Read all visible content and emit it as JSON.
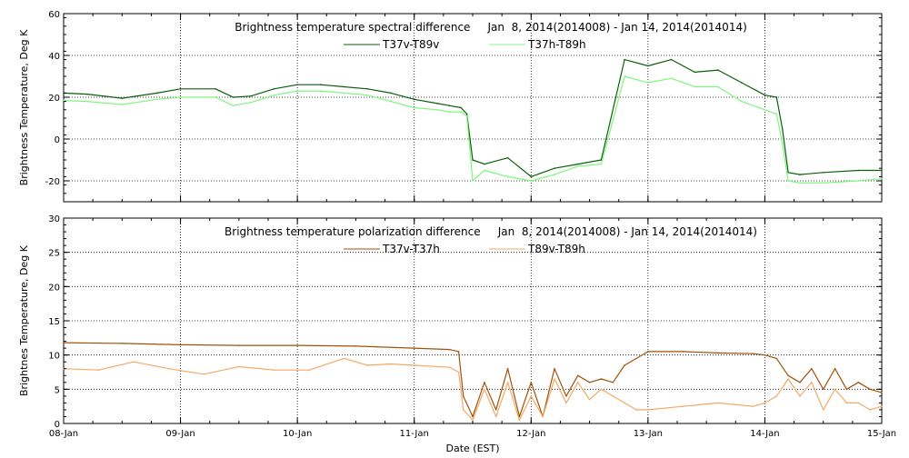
{
  "xlabel": "Date (EST)",
  "x_tick_labels": [
    "08-Jan",
    "09-Jan",
    "10-Jan",
    "11-Jan",
    "12-Jan",
    "13-Jan",
    "14-Jan",
    "15-Jan"
  ],
  "panels": [
    {
      "title": "Brightness temperature spectral difference     Jan  8, 2014(2014008) - Jan 14, 2014(2014014)",
      "ylabel": "Brightness Temperature, Deg K",
      "legend": [
        {
          "label": "T37v-T89v",
          "color": "#0b5f0b"
        },
        {
          "label": "T37h-T89h",
          "color": "#7ff57f"
        }
      ]
    },
    {
      "title": "Brightness temperature polarization difference     Jan  8, 2014(2014008) - Jan 14, 2014(2014014)",
      "ylabel": "Brightnes Temperature, Deg K",
      "legend": [
        {
          "label": "T37v-T37h",
          "color": "#a0520a"
        },
        {
          "label": "T89v-T89h",
          "color": "#f3a968"
        }
      ]
    }
  ],
  "chart_data": [
    {
      "type": "line",
      "title": "Brightness temperature spectral difference     Jan  8, 2014(2014008) - Jan 14, 2014(2014014)",
      "xlabel": "Date (EST)",
      "ylabel": "Brightness Temperature, Deg K",
      "x_unit": "days since 08-Jan 2014",
      "xlim": [
        0,
        7
      ],
      "ylim": [
        -30,
        60
      ],
      "yticks": [
        -20,
        0,
        20,
        40,
        60
      ],
      "grid": true,
      "legend_position": "top-center",
      "series": [
        {
          "name": "T37v-T89v",
          "color": "#0b5f0b",
          "x": [
            0,
            0.2,
            0.5,
            0.8,
            1.0,
            1.3,
            1.45,
            1.6,
            1.8,
            2.0,
            2.2,
            2.4,
            2.6,
            2.8,
            3.0,
            3.2,
            3.3,
            3.4,
            3.45,
            3.5,
            3.6,
            3.8,
            4.0,
            4.2,
            4.4,
            4.6,
            4.8,
            5.0,
            5.2,
            5.4,
            5.6,
            5.8,
            6.0,
            6.1,
            6.15,
            6.2,
            6.3,
            6.5,
            6.8,
            7.0
          ],
          "values": [
            22,
            21.5,
            19.5,
            22,
            24,
            24,
            20,
            20.5,
            24,
            26,
            26,
            25,
            24,
            22,
            19,
            17,
            16,
            15,
            12,
            -10,
            -12,
            -9,
            -18,
            -14,
            -12,
            -10,
            38,
            35,
            38,
            32,
            33,
            27,
            21,
            20,
            5,
            -16,
            -17,
            -16,
            -15,
            -15
          ]
        },
        {
          "name": "T37h-T89h",
          "color": "#7ff57f",
          "x": [
            0,
            0.2,
            0.5,
            0.8,
            1.0,
            1.3,
            1.45,
            1.6,
            1.8,
            2.0,
            2.2,
            2.4,
            2.6,
            2.8,
            3.0,
            3.2,
            3.3,
            3.4,
            3.45,
            3.5,
            3.6,
            3.8,
            4.0,
            4.2,
            4.4,
            4.6,
            4.8,
            5.0,
            5.2,
            5.4,
            5.6,
            5.8,
            6.0,
            6.1,
            6.15,
            6.2,
            6.3,
            6.5,
            6.8,
            7.0
          ],
          "values": [
            18.5,
            18,
            16.5,
            19,
            20,
            20,
            16,
            17.5,
            21,
            23,
            23,
            22,
            21,
            18,
            15,
            14,
            13,
            13,
            11,
            -20,
            -15,
            -18,
            -20,
            -17,
            -13,
            -12,
            30,
            27,
            29,
            25,
            25,
            18,
            14,
            12,
            -2,
            -20,
            -21,
            -21,
            -20,
            -19
          ]
        }
      ]
    },
    {
      "type": "line",
      "title": "Brightness temperature polarization difference     Jan  8, 2014(2014008) - Jan 14, 2014(2014014)",
      "xlabel": "Date (EST)",
      "ylabel": "Brightnes Temperature, Deg K",
      "x_unit": "days since 08-Jan 2014",
      "xlim": [
        0,
        7
      ],
      "ylim": [
        0,
        30
      ],
      "yticks": [
        0,
        5,
        10,
        15,
        20,
        25,
        30
      ],
      "grid": true,
      "legend_position": "top-center",
      "series": [
        {
          "name": "T37v-T37h",
          "color": "#a0520a",
          "x": [
            0,
            0.5,
            1.0,
            1.5,
            2.0,
            2.5,
            3.0,
            3.3,
            3.38,
            3.42,
            3.5,
            3.6,
            3.7,
            3.8,
            3.9,
            4.0,
            4.1,
            4.2,
            4.3,
            4.4,
            4.5,
            4.6,
            4.7,
            4.8,
            5.0,
            5.3,
            5.6,
            5.9,
            6.0,
            6.1,
            6.2,
            6.3,
            6.4,
            6.5,
            6.6,
            6.7,
            6.8,
            6.9,
            7.0
          ],
          "values": [
            11.8,
            11.7,
            11.5,
            11.4,
            11.4,
            11.3,
            11,
            10.8,
            10.5,
            4,
            1,
            6,
            2,
            8,
            1,
            6,
            1,
            8,
            4,
            7,
            6,
            6.5,
            6,
            8.5,
            10.5,
            10.5,
            10.3,
            10.2,
            10,
            9.5,
            7,
            6,
            8,
            5,
            8,
            5,
            6,
            5,
            4.5
          ]
        },
        {
          "name": "T89v-T89h",
          "color": "#f3a968",
          "x": [
            0,
            0.3,
            0.6,
            0.9,
            1.2,
            1.5,
            1.8,
            2.1,
            2.4,
            2.6,
            2.8,
            3.0,
            3.3,
            3.38,
            3.42,
            3.5,
            3.6,
            3.7,
            3.8,
            3.9,
            4.0,
            4.1,
            4.2,
            4.3,
            4.4,
            4.5,
            4.6,
            4.7,
            4.8,
            4.9,
            5.0,
            5.3,
            5.6,
            5.9,
            6.0,
            6.1,
            6.2,
            6.3,
            6.4,
            6.5,
            6.6,
            6.7,
            6.8,
            6.9,
            7.0
          ],
          "values": [
            8,
            7.8,
            9,
            8,
            7.2,
            8.3,
            7.8,
            7.8,
            9.5,
            8.5,
            8.7,
            8.5,
            8.2,
            7.5,
            2,
            0.5,
            5,
            1,
            6,
            0.5,
            4,
            1,
            6.5,
            3,
            6,
            3.5,
            5,
            4,
            3,
            2,
            2,
            2.5,
            3,
            2.5,
            3,
            4,
            6.5,
            4,
            6,
            2,
            5,
            3,
            3,
            2,
            2.5
          ]
        }
      ]
    }
  ]
}
